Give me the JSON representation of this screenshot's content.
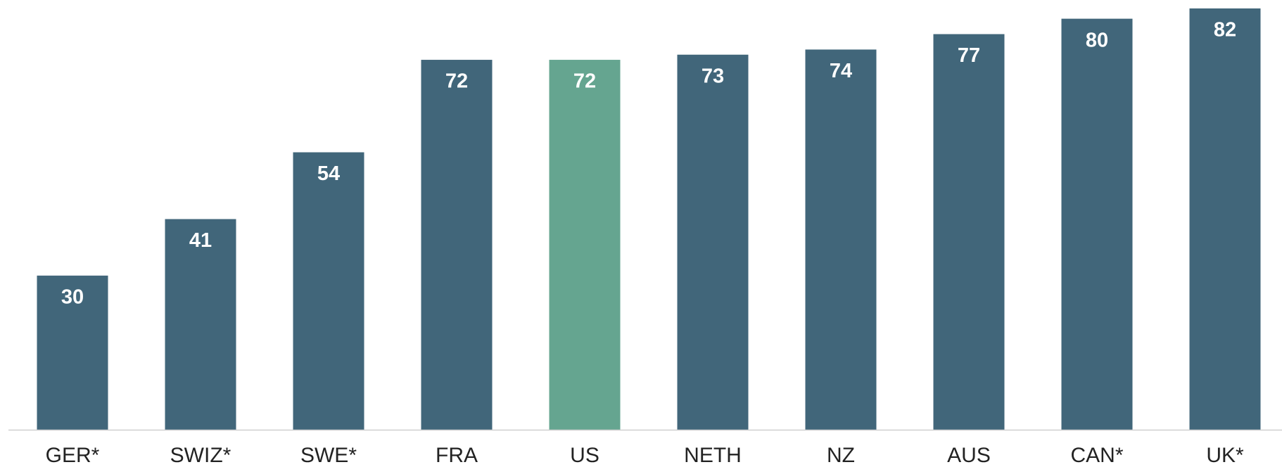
{
  "chart_data": {
    "type": "bar",
    "categories": [
      "GER*",
      "SWIZ*",
      "SWE*",
      "FRA",
      "US",
      "NETH",
      "NZ",
      "AUS",
      "CAN*",
      "UK*"
    ],
    "values": [
      30,
      41,
      54,
      72,
      72,
      73,
      74,
      77,
      80,
      82
    ],
    "colors": [
      "#41667a",
      "#41667a",
      "#41667a",
      "#41667a",
      "#65a590",
      "#41667a",
      "#41667a",
      "#41667a",
      "#41667a",
      "#41667a"
    ],
    "grid": false
  }
}
